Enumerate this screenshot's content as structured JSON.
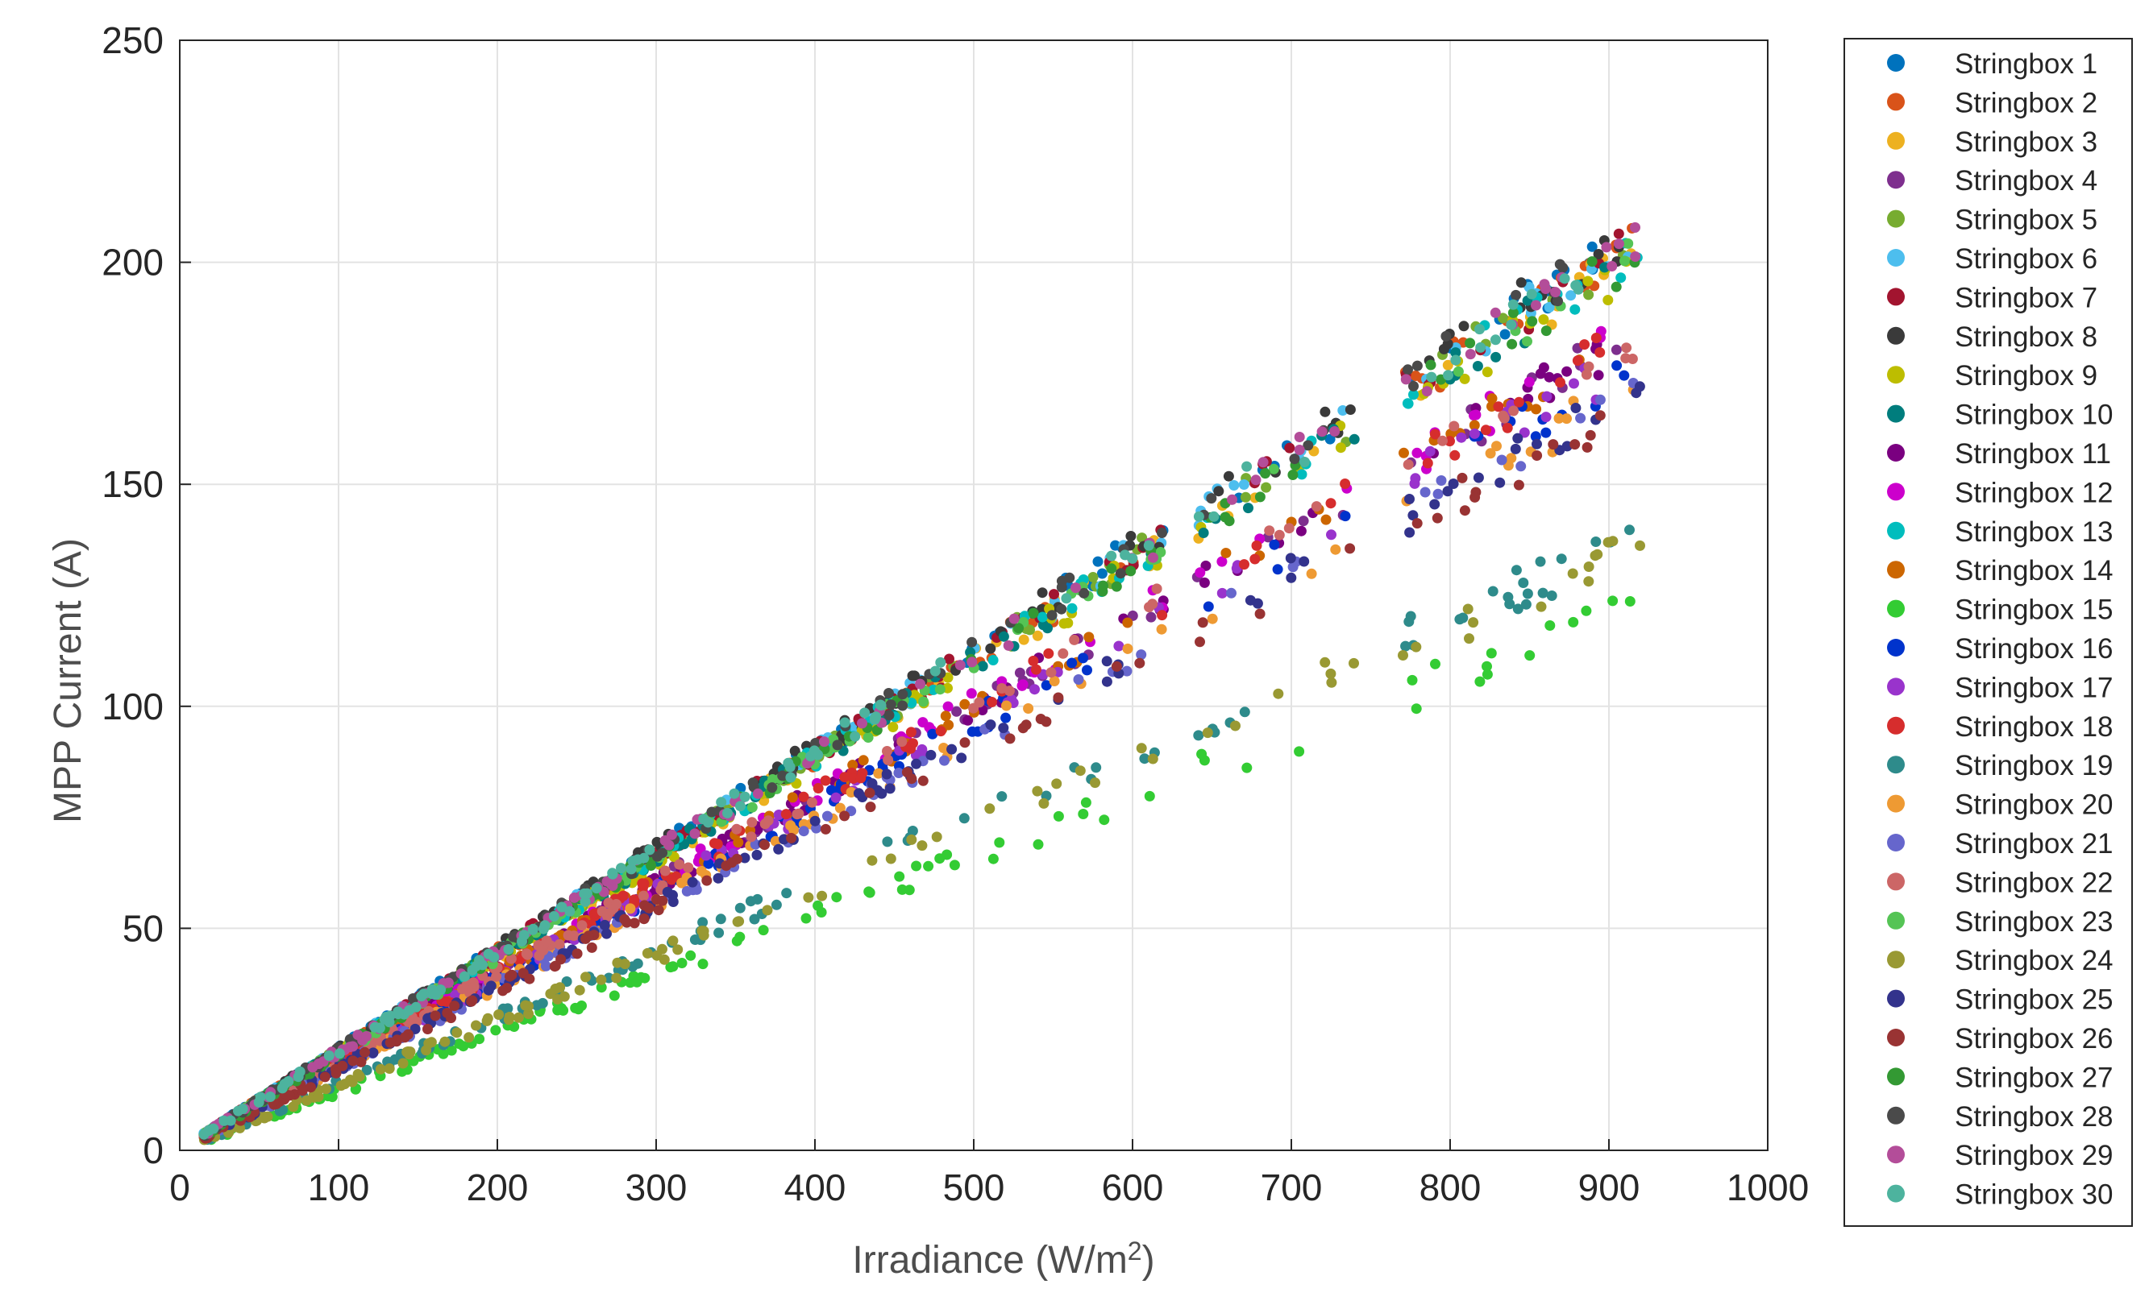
{
  "chart_data": {
    "type": "scatter",
    "title": "",
    "xlabel": "Irradiance (W/m",
    "xlabel_superscript": "2",
    "xlabel_suffix": ")",
    "ylabel": "MPP Current (A)",
    "xlim": [
      0,
      1000
    ],
    "ylim": [
      0,
      250
    ],
    "xticks": [
      0,
      100,
      200,
      300,
      400,
      500,
      600,
      700,
      800,
      900,
      1000
    ],
    "yticks": [
      0,
      50,
      100,
      150,
      200,
      250
    ],
    "xtick_labels": [
      "0",
      "100",
      "200",
      "300",
      "400",
      "500",
      "600",
      "700",
      "800",
      "900",
      "1000"
    ],
    "ytick_labels": [
      "0",
      "50",
      "100",
      "150",
      "200",
      "250"
    ],
    "grid": true,
    "legend": "outside-right",
    "series": [
      {
        "name": "Stringbox 1",
        "color": "#0072BD",
        "group": "a",
        "slope": 0.2255,
        "noise": 3
      },
      {
        "name": "Stringbox 2",
        "color": "#D95319",
        "group": "a",
        "slope": 0.222,
        "noise": 3
      },
      {
        "name": "Stringbox 3",
        "color": "#EDB120",
        "group": "a",
        "slope": 0.22,
        "noise": 3
      },
      {
        "name": "Stringbox 4",
        "color": "#7E2F8E",
        "group": "b",
        "slope": 0.2,
        "noise": 3
      },
      {
        "name": "Stringbox 5",
        "color": "#77AC30",
        "group": "a",
        "slope": 0.222,
        "noise": 3
      },
      {
        "name": "Stringbox 6",
        "color": "#4DBEEE",
        "group": "a",
        "slope": 0.224,
        "noise": 3
      },
      {
        "name": "Stringbox 7",
        "color": "#A2142F",
        "group": "a",
        "slope": 0.223,
        "noise": 3
      },
      {
        "name": "Stringbox 8",
        "color": "#3a3a3a",
        "group": "a",
        "slope": 0.226,
        "noise": 3
      },
      {
        "name": "Stringbox 9",
        "color": "#BDBD00",
        "group": "a",
        "slope": 0.218,
        "noise": 3
      },
      {
        "name": "Stringbox 10",
        "color": "#007D7D",
        "group": "a",
        "slope": 0.22,
        "noise": 3
      },
      {
        "name": "Stringbox 11",
        "color": "#7A0080",
        "group": "b",
        "slope": 0.2,
        "noise": 3
      },
      {
        "name": "Stringbox 12",
        "color": "#CC00CC",
        "group": "b",
        "slope": 0.201,
        "noise": 3
      },
      {
        "name": "Stringbox 13",
        "color": "#00BDBD",
        "group": "a",
        "slope": 0.221,
        "noise": 3
      },
      {
        "name": "Stringbox 14",
        "color": "#CC6600",
        "group": "b",
        "slope": 0.2,
        "noise": 3
      },
      {
        "name": "Stringbox 15",
        "color": "#33CC33",
        "group": "d",
        "slope": 0.133,
        "noise": 3
      },
      {
        "name": "Stringbox 16",
        "color": "#0033CC",
        "group": "b",
        "slope": 0.193,
        "noise": 3
      },
      {
        "name": "Stringbox 17",
        "color": "#9933CC",
        "group": "b",
        "slope": 0.195,
        "noise": 3
      },
      {
        "name": "Stringbox 18",
        "color": "#D62D2D",
        "group": "b",
        "slope": 0.2,
        "noise": 3
      },
      {
        "name": "Stringbox 19",
        "color": "#2E8B8B",
        "group": "c",
        "slope": 0.15,
        "noise": 3
      },
      {
        "name": "Stringbox 20",
        "color": "#EE9A33",
        "group": "b",
        "slope": 0.187,
        "noise": 3
      },
      {
        "name": "Stringbox 21",
        "color": "#6666CC",
        "group": "b",
        "slope": 0.185,
        "noise": 3
      },
      {
        "name": "Stringbox 22",
        "color": "#CC6666",
        "group": "b",
        "slope": 0.2,
        "noise": 3
      },
      {
        "name": "Stringbox 23",
        "color": "#55C455",
        "group": "a",
        "slope": 0.22,
        "noise": 3
      },
      {
        "name": "Stringbox 24",
        "color": "#999933",
        "group": "c",
        "slope": 0.147,
        "noise": 3
      },
      {
        "name": "Stringbox 25",
        "color": "#33338C",
        "group": "b",
        "slope": 0.185,
        "noise": 3
      },
      {
        "name": "Stringbox 26",
        "color": "#993333",
        "group": "e",
        "slope": 0.182,
        "noise": 3
      },
      {
        "name": "Stringbox 27",
        "color": "#339933",
        "group": "a",
        "slope": 0.22,
        "noise": 3
      },
      {
        "name": "Stringbox 28",
        "color": "#4a4a4a",
        "group": "a",
        "slope": 0.225,
        "noise": 3
      },
      {
        "name": "Stringbox 29",
        "color": "#B34D99",
        "group": "a",
        "slope": 0.223,
        "noise": 3
      },
      {
        "name": "Stringbox 30",
        "color": "#4DB39E",
        "group": "a",
        "slope": 0.224,
        "noise": 3
      }
    ]
  }
}
